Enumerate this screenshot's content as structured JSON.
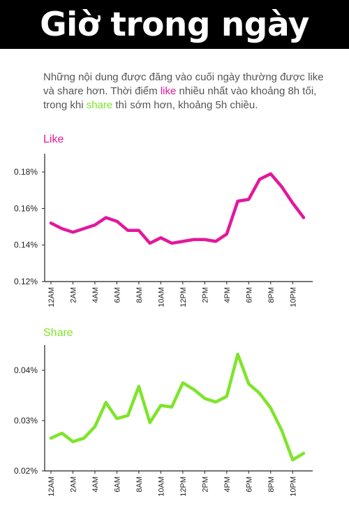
{
  "header": {
    "title": "Giờ trong ngày"
  },
  "intro": {
    "part1": "Những nội dung được đăng vào cuối ngày thường được like và share hơn. Thời điểm ",
    "like_word": "like",
    "part2": " nhiều nhất vào khoảng 8h tối, trong khi ",
    "share_word": "share",
    "part3": " thì sớm hơn, khoảng 5h chiều."
  },
  "colors": {
    "like": "#e2199b",
    "share": "#7ee52a"
  },
  "chart_data": [
    {
      "type": "line",
      "title": "Like",
      "x": [
        0,
        1,
        2,
        3,
        4,
        5,
        6,
        7,
        8,
        9,
        10,
        11,
        12,
        13,
        14,
        15,
        16,
        17,
        18,
        19,
        20,
        21,
        22,
        23
      ],
      "x_tick_labels": [
        "12AM",
        "2AM",
        "4AM",
        "6AM",
        "8AM",
        "10AM",
        "12PM",
        "2PM",
        "4PM",
        "6PM",
        "8PM",
        "10PM"
      ],
      "series": [
        {
          "values": [
            0.152,
            0.149,
            0.147,
            0.149,
            0.151,
            0.155,
            0.153,
            0.148,
            0.148,
            0.141,
            0.144,
            0.141,
            0.142,
            0.143,
            0.143,
            0.142,
            0.146,
            0.164,
            0.165,
            0.176,
            0.179,
            0.172,
            0.163,
            0.155
          ],
          "color": "#e2199b"
        }
      ],
      "yticks": [
        "0.12%",
        "0.14%",
        "0.16%",
        "0.18%"
      ],
      "ylim": [
        0.12,
        0.19
      ],
      "unit": "%"
    },
    {
      "type": "line",
      "title": "Share",
      "x": [
        0,
        1,
        2,
        3,
        4,
        5,
        6,
        7,
        8,
        9,
        10,
        11,
        12,
        13,
        14,
        15,
        16,
        17,
        18,
        19,
        20,
        21,
        22,
        23
      ],
      "x_tick_labels": [
        "12AM",
        "2AM",
        "4AM",
        "6AM",
        "8AM",
        "10AM",
        "12PM",
        "2PM",
        "4PM",
        "6PM",
        "8PM",
        "10PM"
      ],
      "series": [
        {
          "values": [
            0.0265,
            0.0275,
            0.0258,
            0.0265,
            0.0288,
            0.0336,
            0.0304,
            0.031,
            0.0368,
            0.0296,
            0.033,
            0.0327,
            0.0375,
            0.0362,
            0.0344,
            0.0337,
            0.0348,
            0.0432,
            0.0373,
            0.0354,
            0.0325,
            0.0281,
            0.0222,
            0.0235
          ],
          "color": "#7ee52a"
        }
      ],
      "yticks": [
        "0.02%",
        "0.03%",
        "0.04%"
      ],
      "ylim": [
        0.02,
        0.045
      ],
      "unit": "%"
    }
  ]
}
